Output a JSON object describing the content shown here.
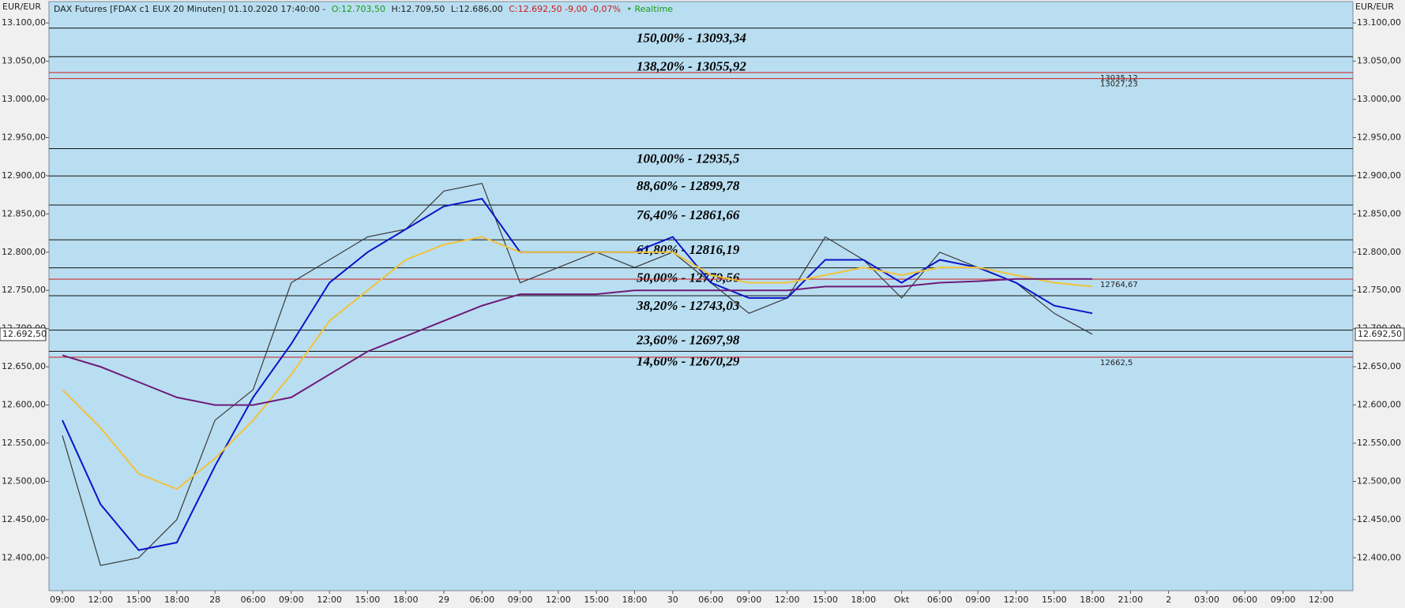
{
  "chart_data": {
    "type": "line",
    "currency": "EUR/EUR",
    "header": [
      "DAX Futures [FDAX c1 EUX 20 Minuten] 01.10.2020 17:40:00 -",
      "O:12.703,50",
      "H:12.709,50",
      "L:12.686,00",
      "C:12.692,50 -9,00 -0,07%",
      "• Realtime"
    ],
    "categories": [
      "09:00",
      "12:00",
      "15:00",
      "18:00",
      "28",
      "06:00",
      "09:00",
      "12:00",
      "15:00",
      "18:00",
      "29",
      "06:00",
      "09:00",
      "12:00",
      "15:00",
      "18:00",
      "30",
      "06:00",
      "09:00",
      "12:00",
      "15:00",
      "18:00",
      "Okt",
      "06:00",
      "09:00",
      "12:00",
      "15:00",
      "18:00",
      "21:00",
      "2",
      "03:00",
      "06:00",
      "09:00",
      "12:00"
    ],
    "series": [
      {
        "color": "#3a3a3a",
        "values": [
          12560,
          12390,
          12400,
          12450,
          12580,
          12620,
          12760,
          12790,
          12820,
          12830,
          12880,
          12890,
          12760,
          12780,
          12800,
          12780,
          12800,
          12760,
          12720,
          12740,
          12820,
          12790,
          12740,
          12800,
          12780,
          12760,
          12720,
          12692.5,
          null,
          null,
          null,
          null,
          null,
          null
        ]
      },
      {
        "color": "#0a14c8",
        "values": [
          12580,
          12470,
          12410,
          12420,
          12520,
          12610,
          12680,
          12760,
          12800,
          12830,
          12860,
          12870,
          12800,
          12800,
          12800,
          12800,
          12820,
          12760,
          12740,
          12740,
          12790,
          12790,
          12760,
          12790,
          12780,
          12760,
          12730,
          12720,
          null,
          null,
          null,
          null,
          null,
          null
        ]
      },
      {
        "color": "#f2c23a",
        "values": [
          12620,
          12570,
          12510,
          12490,
          12530,
          12580,
          12640,
          12710,
          12750,
          12790,
          12810,
          12820,
          12800,
          12800,
          12800,
          12800,
          12800,
          12770,
          12760,
          12760,
          12770,
          12780,
          12770,
          12780,
          12780,
          12770,
          12760,
          12755,
          null,
          null,
          null,
          null,
          null,
          null
        ]
      },
      {
        "color": "#6e1a78",
        "values": [
          12665,
          12650,
          12630,
          12610,
          12600,
          12600,
          12610,
          12640,
          12670,
          12690,
          12710,
          12730,
          12745,
          12745,
          12745,
          12750,
          12750,
          12750,
          12750,
          12750,
          12755,
          12755,
          12755,
          12760,
          12762,
          12765,
          12765,
          12765,
          null,
          null,
          null,
          null,
          null,
          null
        ]
      }
    ],
    "fib_levels": [
      {
        "label": "150,00% - 13093,34",
        "value": 13093.34
      },
      {
        "label": "138,20% - 13055,92",
        "value": 13055.92
      },
      {
        "label": "100,00% - 12935,5",
        "value": 12935.5
      },
      {
        "label": "88,60% - 12899,78",
        "value": 12899.78
      },
      {
        "label": "76,40% - 12861,66",
        "value": 12861.66
      },
      {
        "label": "61,80% - 12816,19",
        "value": 12816.19
      },
      {
        "label": "50,00% - 12779,56",
        "value": 12779.56
      },
      {
        "label": "38,20% - 12743,03",
        "value": 12743.03
      },
      {
        "label": "23,60% - 12697,98",
        "value": 12697.98
      },
      {
        "label": "14,60% - 12670,29",
        "value": 12670.29
      }
    ],
    "red_levels": {
      "values": [
        13035.12,
        13027.23,
        12764.67,
        12662.5
      ],
      "value_labels": [
        "13035,12",
        "13027,23",
        "12764,67",
        "12662,5"
      ],
      "color": "#d01818"
    },
    "last_price": {
      "value": 12692.5,
      "label": "12.692,50"
    },
    "ylim": [
      12357,
      13128
    ],
    "yticks": [
      {
        "value": 12400,
        "label": "12.400,00"
      },
      {
        "value": 12450,
        "label": "12.450,00"
      },
      {
        "value": 12500,
        "label": "12.500,00"
      },
      {
        "value": 12550,
        "label": "12.550,00"
      },
      {
        "value": 12600,
        "label": "12.600,00"
      },
      {
        "value": 12650,
        "label": "12.650,00"
      },
      {
        "value": 12700,
        "label": "12.700,00"
      },
      {
        "value": 12750,
        "label": "12.750,00"
      },
      {
        "value": 12800,
        "label": "12.800,00"
      },
      {
        "value": 12850,
        "label": "12.850,00"
      },
      {
        "value": 12900,
        "label": "12.900,00"
      },
      {
        "value": 12950,
        "label": "12.950,00"
      },
      {
        "value": 13000,
        "label": "13.000,00"
      },
      {
        "value": 13050,
        "label": "13.050,00"
      },
      {
        "value": 13100,
        "label": "13.100,00"
      }
    ]
  }
}
